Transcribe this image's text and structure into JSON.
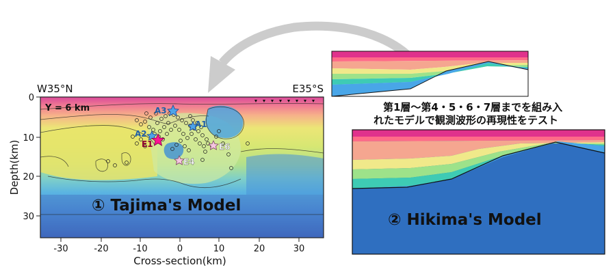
{
  "left_panel": {
    "corner_left": "W35°N",
    "corner_right": "E35°S",
    "y_axis_label": "Depth(km)",
    "x_axis_label": "Cross-section(km)",
    "y_ticks": [
      "0",
      "10",
      "20",
      "30"
    ],
    "x_ticks": [
      "-30",
      "-20",
      "-10",
      "0",
      "10",
      "20",
      "30"
    ],
    "y_slice_label": "Y = 6 km",
    "model_title": "① Tajima's Model",
    "event_labels": [
      "A3",
      "A2",
      "A1",
      "E1",
      "E6",
      "E4"
    ]
  },
  "right_panel": {
    "caption_line1": "第1層～第4・5・6・7層までを組み入",
    "caption_line2": "れたモデルで観測波形の再現性をテスト",
    "model_title": "② Hikima's Model"
  },
  "colors": {
    "arrow": "#cccccc",
    "hikima_base": "#2f6fc0",
    "star_event": "#ff1493",
    "star_aftershock": "#4da3e8"
  }
}
